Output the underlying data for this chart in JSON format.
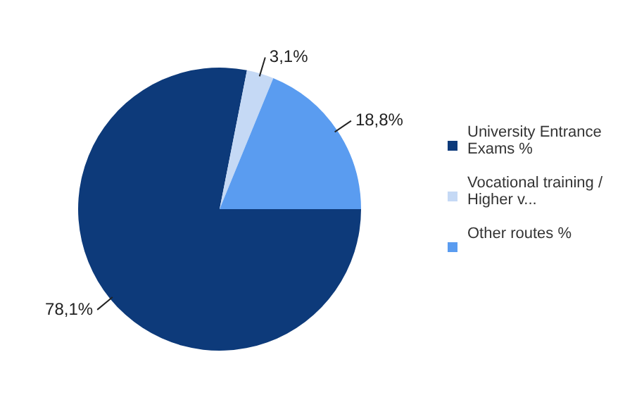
{
  "chart_data": {
    "type": "pie",
    "categories": [
      "University Entrance Exams %",
      "Vocational training / Higher v...",
      "Other routes %"
    ],
    "values": [
      78.1,
      3.1,
      18.8
    ],
    "colors": [
      "#0d3a7a",
      "#c5d9f5",
      "#5a9cf0"
    ],
    "value_labels": [
      "78,1%",
      "3,1%",
      "18,8%"
    ],
    "legend": "right"
  }
}
